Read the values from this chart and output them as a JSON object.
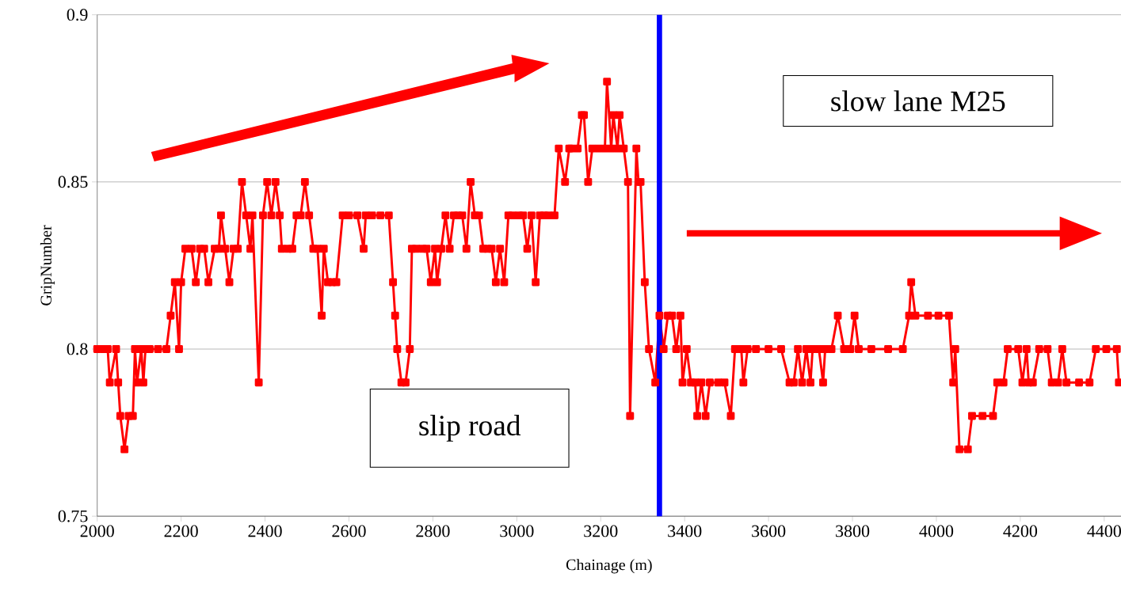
{
  "chart_data": {
    "type": "line",
    "xlabel": "Chainage (m)",
    "ylabel": "GripNumber",
    "annotations": [
      "slip road",
      "slow lane M25"
    ],
    "x": [
      2000,
      2015,
      2025,
      2030,
      2045,
      2050,
      2055,
      2065,
      2075,
      2085,
      2090,
      2095,
      2105,
      2110,
      2115,
      2125,
      2145,
      2165,
      2175,
      2185,
      2195,
      2200,
      2210,
      2225,
      2235,
      2245,
      2255,
      2265,
      2280,
      2290,
      2295,
      2305,
      2315,
      2325,
      2335,
      2345,
      2355,
      2365,
      2370,
      2385,
      2395,
      2405,
      2415,
      2425,
      2435,
      2440,
      2455,
      2465,
      2475,
      2485,
      2495,
      2505,
      2515,
      2525,
      2535,
      2540,
      2550,
      2560,
      2570,
      2585,
      2600,
      2620,
      2635,
      2640,
      2655,
      2675,
      2695,
      2705,
      2710,
      2715,
      2725,
      2735,
      2745,
      2750,
      2760,
      2775,
      2785,
      2795,
      2805,
      2810,
      2820,
      2830,
      2840,
      2850,
      2860,
      2870,
      2880,
      2890,
      2900,
      2910,
      2920,
      2930,
      2940,
      2950,
      2960,
      2970,
      2980,
      2990,
      3005,
      3015,
      3025,
      3035,
      3045,
      3055,
      3065,
      3075,
      3090,
      3100,
      3115,
      3125,
      3130,
      3145,
      3155,
      3160,
      3170,
      3180,
      3195,
      3210,
      3215,
      3225,
      3230,
      3240,
      3245,
      3255,
      3265,
      3270,
      3285,
      3290,
      3295,
      3305,
      3315,
      3330,
      3340,
      3350,
      3360,
      3370,
      3380,
      3390,
      3395,
      3405,
      3415,
      3425,
      3430,
      3440,
      3450,
      3460,
      3480,
      3495,
      3510,
      3520,
      3535,
      3540,
      3550,
      3570,
      3600,
      3630,
      3650,
      3660,
      3670,
      3680,
      3690,
      3700,
      3705,
      3720,
      3730,
      3735,
      3750,
      3765,
      3780,
      3795,
      3805,
      3815,
      3845,
      3885,
      3920,
      3935,
      3940,
      3950,
      3980,
      4005,
      4030,
      4040,
      4045,
      4055,
      4075,
      4085,
      4110,
      4135,
      4145,
      4160,
      4170,
      4195,
      4205,
      4215,
      4220,
      4230,
      4245,
      4265,
      4275,
      4290,
      4300,
      4310,
      4340,
      4365,
      4380,
      4405,
      4430,
      4435
    ],
    "series": [
      {
        "color": "#ff0000",
        "values": [
          0.8,
          0.8,
          0.8,
          0.79,
          0.8,
          0.79,
          0.78,
          0.77,
          0.78,
          0.78,
          0.8,
          0.79,
          0.8,
          0.79,
          0.8,
          0.8,
          0.8,
          0.8,
          0.81,
          0.82,
          0.8,
          0.82,
          0.83,
          0.83,
          0.82,
          0.83,
          0.83,
          0.82,
          0.83,
          0.83,
          0.84,
          0.83,
          0.82,
          0.83,
          0.83,
          0.85,
          0.84,
          0.83,
          0.84,
          0.79,
          0.84,
          0.85,
          0.84,
          0.85,
          0.84,
          0.83,
          0.83,
          0.83,
          0.84,
          0.84,
          0.85,
          0.84,
          0.83,
          0.83,
          0.81,
          0.83,
          0.82,
          0.82,
          0.82,
          0.84,
          0.84,
          0.84,
          0.83,
          0.84,
          0.84,
          0.84,
          0.84,
          0.82,
          0.81,
          0.8,
          0.79,
          0.79,
          0.8,
          0.83,
          0.83,
          0.83,
          0.83,
          0.82,
          0.83,
          0.82,
          0.83,
          0.84,
          0.83,
          0.84,
          0.84,
          0.84,
          0.83,
          0.85,
          0.84,
          0.84,
          0.83,
          0.83,
          0.83,
          0.82,
          0.83,
          0.82,
          0.84,
          0.84,
          0.84,
          0.84,
          0.83,
          0.84,
          0.82,
          0.84,
          0.84,
          0.84,
          0.84,
          0.86,
          0.85,
          0.86,
          0.86,
          0.86,
          0.87,
          0.87,
          0.85,
          0.86,
          0.86,
          0.86,
          0.88,
          0.86,
          0.87,
          0.86,
          0.87,
          0.86,
          0.85,
          0.78,
          0.86,
          0.85,
          0.85,
          0.82,
          0.8,
          0.79,
          0.81,
          0.8,
          0.81,
          0.81,
          0.8,
          0.81,
          0.79,
          0.8,
          0.79,
          0.79,
          0.78,
          0.79,
          0.78,
          0.79,
          0.79,
          0.79,
          0.78,
          0.8,
          0.8,
          0.79,
          0.8,
          0.8,
          0.8,
          0.8,
          0.79,
          0.79,
          0.8,
          0.79,
          0.8,
          0.79,
          0.8,
          0.8,
          0.79,
          0.8,
          0.8,
          0.81,
          0.8,
          0.8,
          0.81,
          0.8,
          0.8,
          0.8,
          0.8,
          0.81,
          0.82,
          0.81,
          0.81,
          0.81,
          0.81,
          0.79,
          0.8,
          0.77,
          0.77,
          0.78,
          0.78,
          0.78,
          0.79,
          0.79,
          0.8,
          0.8,
          0.79,
          0.8,
          0.79,
          0.79,
          0.8,
          0.8,
          0.79,
          0.79,
          0.8,
          0.79,
          0.79,
          0.79,
          0.8,
          0.8,
          0.8,
          0.79
        ]
      }
    ],
    "xlim": [
      2000,
      4440
    ],
    "ylim": [
      0.75,
      0.9
    ],
    "xticks": [
      2000,
      2200,
      2400,
      2600,
      2800,
      3000,
      3200,
      3400,
      3600,
      3800,
      4000,
      4200,
      4400
    ],
    "yticks": [
      0.75,
      0.8,
      0.85,
      0.9
    ],
    "grid": "y",
    "marker": "square",
    "line_style": "solid",
    "ref_lines": [
      {
        "axis": "x",
        "value": 3340,
        "color": "#0000ff"
      }
    ]
  }
}
